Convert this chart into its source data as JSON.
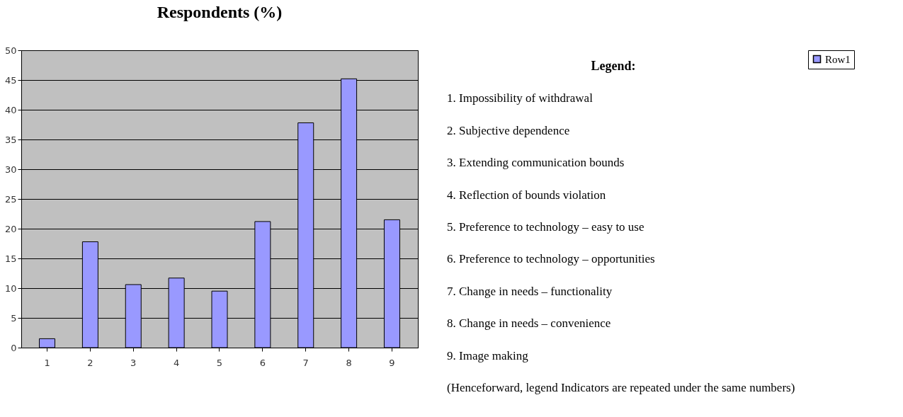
{
  "chart_data": {
    "type": "bar",
    "title": "Respondents (%)",
    "categories": [
      "1",
      "2",
      "3",
      "4",
      "5",
      "6",
      "7",
      "8",
      "9"
    ],
    "series": [
      {
        "name": "Row1",
        "color": "#9999ff",
        "values": [
          1.5,
          17.8,
          10.6,
          11.7,
          9.5,
          21.2,
          37.8,
          45.2,
          21.5
        ]
      }
    ],
    "ylim": [
      0,
      50
    ],
    "yticks": [
      0,
      5,
      10,
      15,
      20,
      25,
      30,
      35,
      40,
      45,
      50
    ],
    "grid": "y",
    "legend": "right",
    "annotations": [
      "Legend:",
      "1. Impossibility of withdrawal",
      "2. Subjective dependence",
      "3. Extending communication bounds",
      "4. Reflection of bounds violation",
      "5. Preference to technology – easy to use",
      "6. Preference to technology – opportunities",
      "7. Change in needs – functionality",
      "8. Change in needs – convenience",
      "9. Image making",
      "(Henceforward, legend Indicators are repeated under the same numbers)"
    ]
  }
}
